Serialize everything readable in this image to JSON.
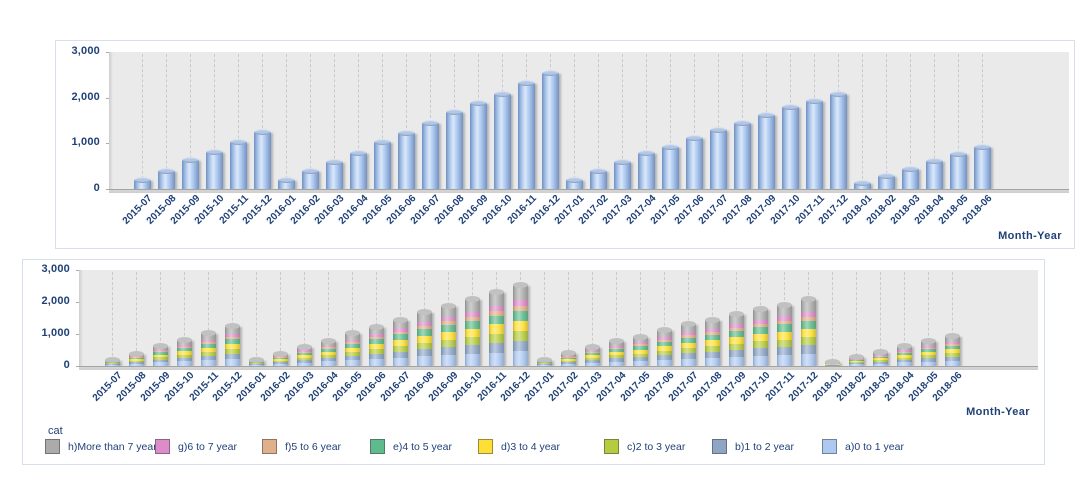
{
  "chart_data": [
    {
      "type": "bar",
      "bar_style": "cylinder",
      "title": "",
      "xlabel": "Month-Year",
      "ylabel": "",
      "ylim": [
        0,
        3000
      ],
      "grid": "vertical-dashed-per-category",
      "legend": "none",
      "bar_color": "#A9C6EE",
      "y_ticks": [
        {
          "value": 0,
          "label": "0"
        },
        {
          "value": 1000,
          "label": "1,000"
        },
        {
          "value": 2000,
          "label": "2,000"
        },
        {
          "value": 3000,
          "label": "3,000"
        }
      ],
      "categories": [
        "2015-07",
        "2015-08",
        "2015-09",
        "2015-10",
        "2015-11",
        "2015-12",
        "2016-01",
        "2016-02",
        "2016-03",
        "2016-04",
        "2016-05",
        "2016-06",
        "2016-07",
        "2016-08",
        "2016-09",
        "2016-10",
        "2016-11",
        "2016-12",
        "2017-01",
        "2017-02",
        "2017-03",
        "2017-04",
        "2017-05",
        "2017-06",
        "2017-07",
        "2017-08",
        "2017-09",
        "2017-10",
        "2017-11",
        "2017-12",
        "2018-01",
        "2018-02",
        "2018-03",
        "2018-04",
        "2018-05",
        "2018-06"
      ],
      "values": [
        200,
        390,
        630,
        820,
        1020,
        1240,
        200,
        390,
        600,
        790,
        1020,
        1230,
        1450,
        1690,
        1890,
        2090,
        2320,
        2540,
        200,
        400,
        590,
        780,
        910,
        1110,
        1300,
        1440,
        1610,
        1790,
        1920,
        2080,
        130,
        280,
        430,
        610,
        770,
        930
      ]
    },
    {
      "type": "bar",
      "stacked": true,
      "bar_style": "cylinder",
      "title": "",
      "xlabel": "Month-Year",
      "ylabel": "",
      "ylim": [
        0,
        3000
      ],
      "grid": "vertical-dashed-per-category",
      "y_ticks": [
        {
          "value": 0,
          "label": "0"
        },
        {
          "value": 1000,
          "label": "1,000"
        },
        {
          "value": 2000,
          "label": "2,000"
        },
        {
          "value": 3000,
          "label": "3,000"
        }
      ],
      "legend": {
        "title": "cat",
        "position": "bottom",
        "display_order": [
          "h",
          "g",
          "f",
          "e",
          "d",
          "c",
          "b",
          "a"
        ]
      },
      "categories": [
        "2015-07",
        "2015-08",
        "2015-09",
        "2015-10",
        "2015-11",
        "2015-12",
        "2016-01",
        "2016-02",
        "2016-03",
        "2016-04",
        "2016-05",
        "2016-06",
        "2016-07",
        "2016-08",
        "2016-09",
        "2016-10",
        "2016-11",
        "2016-12",
        "2017-01",
        "2017-02",
        "2017-03",
        "2017-04",
        "2017-05",
        "2017-06",
        "2017-07",
        "2017-08",
        "2017-09",
        "2017-10",
        "2017-11",
        "2017-12",
        "2018-01",
        "2018-02",
        "2018-03",
        "2018-04",
        "2018-05",
        "2018-06"
      ],
      "series": [
        {
          "id": "a",
          "name": "a)0 to 1 year",
          "color": "#ADC9F1",
          "values": [
            36,
            70,
            113,
            148,
            184,
            223,
            36,
            70,
            108,
            142,
            184,
            221,
            261,
            304,
            340,
            376,
            418,
            457,
            36,
            72,
            106,
            140,
            164,
            200,
            234,
            259,
            290,
            322,
            346,
            374,
            23,
            50,
            77,
            110,
            139,
            167
          ]
        },
        {
          "id": "b",
          "name": "b)1 to 2 year",
          "color": "#8EA5C6",
          "values": [
            26,
            51,
            82,
            107,
            133,
            161,
            26,
            51,
            78,
            103,
            133,
            160,
            189,
            220,
            246,
            272,
            302,
            330,
            26,
            52,
            77,
            101,
            118,
            144,
            169,
            187,
            209,
            233,
            250,
            270,
            17,
            36,
            56,
            79,
            100,
            121
          ]
        },
        {
          "id": "c",
          "name": "c)2 to 3 year",
          "color": "#B5CC3F",
          "values": [
            24,
            47,
            76,
            98,
            122,
            149,
            24,
            47,
            72,
            95,
            122,
            148,
            174,
            203,
            227,
            251,
            278,
            305,
            24,
            48,
            71,
            94,
            109,
            133,
            156,
            173,
            193,
            215,
            230,
            250,
            16,
            34,
            52,
            73,
            92,
            112
          ]
        },
        {
          "id": "d",
          "name": "d)3 to 4 year",
          "color": "#FFDF35",
          "values": [
            26,
            51,
            82,
            107,
            133,
            161,
            26,
            51,
            78,
            103,
            133,
            160,
            189,
            220,
            246,
            272,
            302,
            330,
            26,
            52,
            77,
            101,
            118,
            144,
            169,
            187,
            209,
            233,
            250,
            270,
            17,
            36,
            56,
            79,
            100,
            121
          ]
        },
        {
          "id": "e",
          "name": "e)4 to 5 year",
          "color": "#5EBB8D",
          "values": [
            24,
            47,
            76,
            98,
            122,
            149,
            24,
            47,
            72,
            95,
            122,
            148,
            174,
            203,
            227,
            251,
            278,
            305,
            24,
            48,
            71,
            94,
            109,
            133,
            156,
            173,
            193,
            215,
            230,
            250,
            16,
            34,
            52,
            73,
            92,
            112
          ]
        },
        {
          "id": "f",
          "name": "f)5 to 6 year",
          "color": "#DFB089",
          "values": [
            12,
            23,
            38,
            49,
            61,
            74,
            12,
            23,
            36,
            47,
            61,
            74,
            87,
            101,
            113,
            125,
            139,
            152,
            12,
            24,
            35,
            47,
            55,
            67,
            78,
            86,
            97,
            107,
            115,
            125,
            8,
            17,
            26,
            37,
            46,
            56
          ]
        },
        {
          "id": "g",
          "name": "g)6 to 7 year",
          "color": "#DD8CC9",
          "values": [
            14,
            27,
            44,
            57,
            71,
            87,
            14,
            27,
            42,
            55,
            71,
            86,
            102,
            118,
            132,
            146,
            162,
            178,
            14,
            28,
            41,
            55,
            64,
            78,
            91,
            101,
            113,
            125,
            134,
            146,
            9,
            20,
            30,
            43,
            54,
            65
          ]
        },
        {
          "id": "h",
          "name": "h)More than 7 year",
          "color": "#ABABAB",
          "values": [
            38,
            74,
            119,
            156,
            194,
            236,
            38,
            74,
            114,
            150,
            194,
            233,
            274,
            321,
            359,
            397,
            441,
            483,
            38,
            76,
            112,
            148,
            173,
            211,
            247,
            274,
            306,
            340,
            365,
            395,
            24,
            53,
            81,
            116,
            147,
            176
          ]
        }
      ]
    }
  ]
}
